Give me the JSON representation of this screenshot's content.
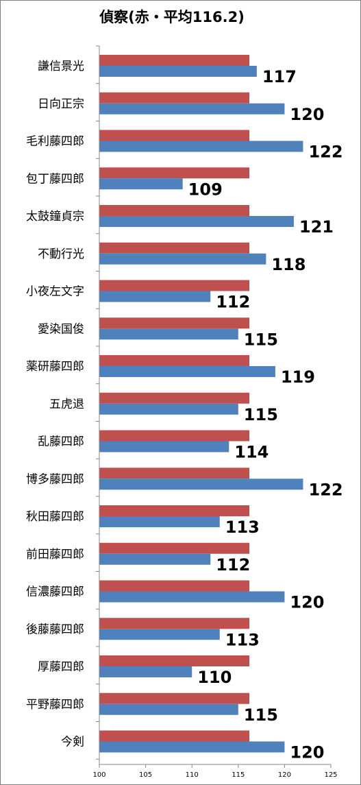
{
  "chart_data": {
    "type": "bar",
    "orientation": "horizontal",
    "title": "偵察(赤・平均116.2)",
    "categories": [
      "謙信景光",
      "日向正宗",
      "毛利藤四郎",
      "包丁藤四郎",
      "太鼓鐘貞宗",
      "不動行光",
      "小夜左文字",
      "愛染国俊",
      "薬研藤四郎",
      "五虎退",
      "乱藤四郎",
      "博多藤四郎",
      "秋田藤四郎",
      "前田藤四郎",
      "信濃藤四郎",
      "後藤藤四郎",
      "厚藤四郎",
      "平野藤四郎",
      "今剣"
    ],
    "series": [
      {
        "color": "#c0504d",
        "values": [
          116.2,
          116.2,
          116.2,
          116.2,
          116.2,
          116.2,
          116.2,
          116.2,
          116.2,
          116.2,
          116.2,
          116.2,
          116.2,
          116.2,
          116.2,
          116.2,
          116.2,
          116.2,
          116.2
        ]
      },
      {
        "color": "#4f81bd",
        "values": [
          117,
          120,
          122,
          109,
          121,
          118,
          112,
          115,
          119,
          115,
          114,
          122,
          113,
          112,
          120,
          113,
          110,
          115,
          120
        ]
      }
    ],
    "data_labels": [
      "117",
      "120",
      "122",
      "109",
      "121",
      "118",
      "112",
      "115",
      "119",
      "115",
      "114",
      "122",
      "113",
      "112",
      "120",
      "113",
      "110",
      "115",
      "120"
    ],
    "xlim": [
      100,
      125
    ],
    "xticks": [
      "100",
      "105",
      "110",
      "115",
      "120",
      "125"
    ],
    "grid": false,
    "legend": "none"
  }
}
